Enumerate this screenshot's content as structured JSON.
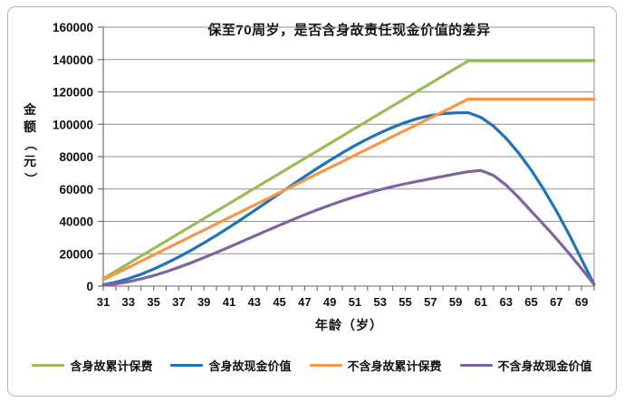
{
  "title": "保至70周岁，是否含身故责任现金价值的差异",
  "chart_data": {
    "type": "line",
    "title": "保至70周岁，是否含身故责任现金价值的差异",
    "xlabel": "年龄（岁）",
    "ylabel": "金额（元）",
    "x": [
      31,
      32,
      33,
      34,
      35,
      36,
      37,
      38,
      39,
      40,
      41,
      42,
      43,
      44,
      45,
      46,
      47,
      48,
      49,
      50,
      51,
      52,
      53,
      54,
      55,
      56,
      57,
      58,
      59,
      60,
      61,
      62,
      63,
      64,
      65,
      66,
      67,
      68,
      69,
      70
    ],
    "x_tick_labels": [
      "31",
      "33",
      "35",
      "37",
      "39",
      "41",
      "43",
      "45",
      "47",
      "49",
      "51",
      "53",
      "55",
      "57",
      "59",
      "61",
      "63",
      "65",
      "67",
      "69"
    ],
    "ylim": [
      0,
      160000
    ],
    "ytick_step": 20000,
    "y_tick_labels": [
      "0",
      "20000",
      "40000",
      "60000",
      "80000",
      "100000",
      "120000",
      "140000",
      "160000"
    ],
    "grid": true,
    "legend_position": "bottom",
    "series": [
      {
        "name": "含身故累计保费",
        "color": "#9BBB59",
        "values": [
          4640,
          9280,
          13920,
          18560,
          23200,
          27840,
          32480,
          37120,
          41760,
          46400,
          51040,
          55680,
          60320,
          64960,
          69600,
          74240,
          78880,
          83520,
          88160,
          92800,
          97440,
          102080,
          106720,
          111360,
          116000,
          120640,
          125280,
          129920,
          134560,
          139200,
          139200,
          139200,
          139200,
          139200,
          139200,
          139200,
          139200,
          139200,
          139200,
          139200
        ]
      },
      {
        "name": "含身故现金价值",
        "color": "#1F74B8",
        "values": [
          800,
          2400,
          4600,
          7300,
          10500,
          14100,
          18000,
          22200,
          26700,
          31400,
          36300,
          41400,
          46600,
          51900,
          57200,
          62500,
          67700,
          72800,
          77700,
          82400,
          86800,
          90900,
          94700,
          98100,
          101100,
          103600,
          105400,
          106600,
          107000,
          107200,
          104300,
          98900,
          91400,
          82300,
          71700,
          59700,
          46500,
          32100,
          16600,
          1000
        ]
      },
      {
        "name": "不含身故累计保费",
        "color": "#F79646",
        "values": [
          3850,
          7700,
          11550,
          15400,
          19250,
          23100,
          26950,
          30800,
          34650,
          38500,
          42350,
          46200,
          50050,
          53900,
          57750,
          61600,
          65450,
          69300,
          73150,
          77000,
          80850,
          84700,
          88550,
          92400,
          96250,
          100100,
          103950,
          107800,
          111650,
          115500,
          115500,
          115500,
          115500,
          115500,
          115500,
          115500,
          115500,
          115500,
          115500,
          115500
        ]
      },
      {
        "name": "不含身故现金价值",
        "color": "#8064A2",
        "values": [
          500,
          1400,
          2700,
          4400,
          6500,
          8900,
          11600,
          14500,
          17600,
          20800,
          24100,
          27500,
          30900,
          34300,
          37600,
          40900,
          44100,
          47100,
          50000,
          52700,
          55200,
          57500,
          59600,
          61500,
          63200,
          64800,
          66300,
          67800,
          69300,
          70700,
          71500,
          68500,
          62500,
          54800,
          46300,
          38000,
          29300,
          20300,
          10800,
          1000
        ]
      }
    ]
  },
  "colors": {
    "grid": "#8f8f8f",
    "axis": "#6e6e6e",
    "text": "#111111",
    "frame_border": "#b4b4b4",
    "background": "#ffffff"
  }
}
